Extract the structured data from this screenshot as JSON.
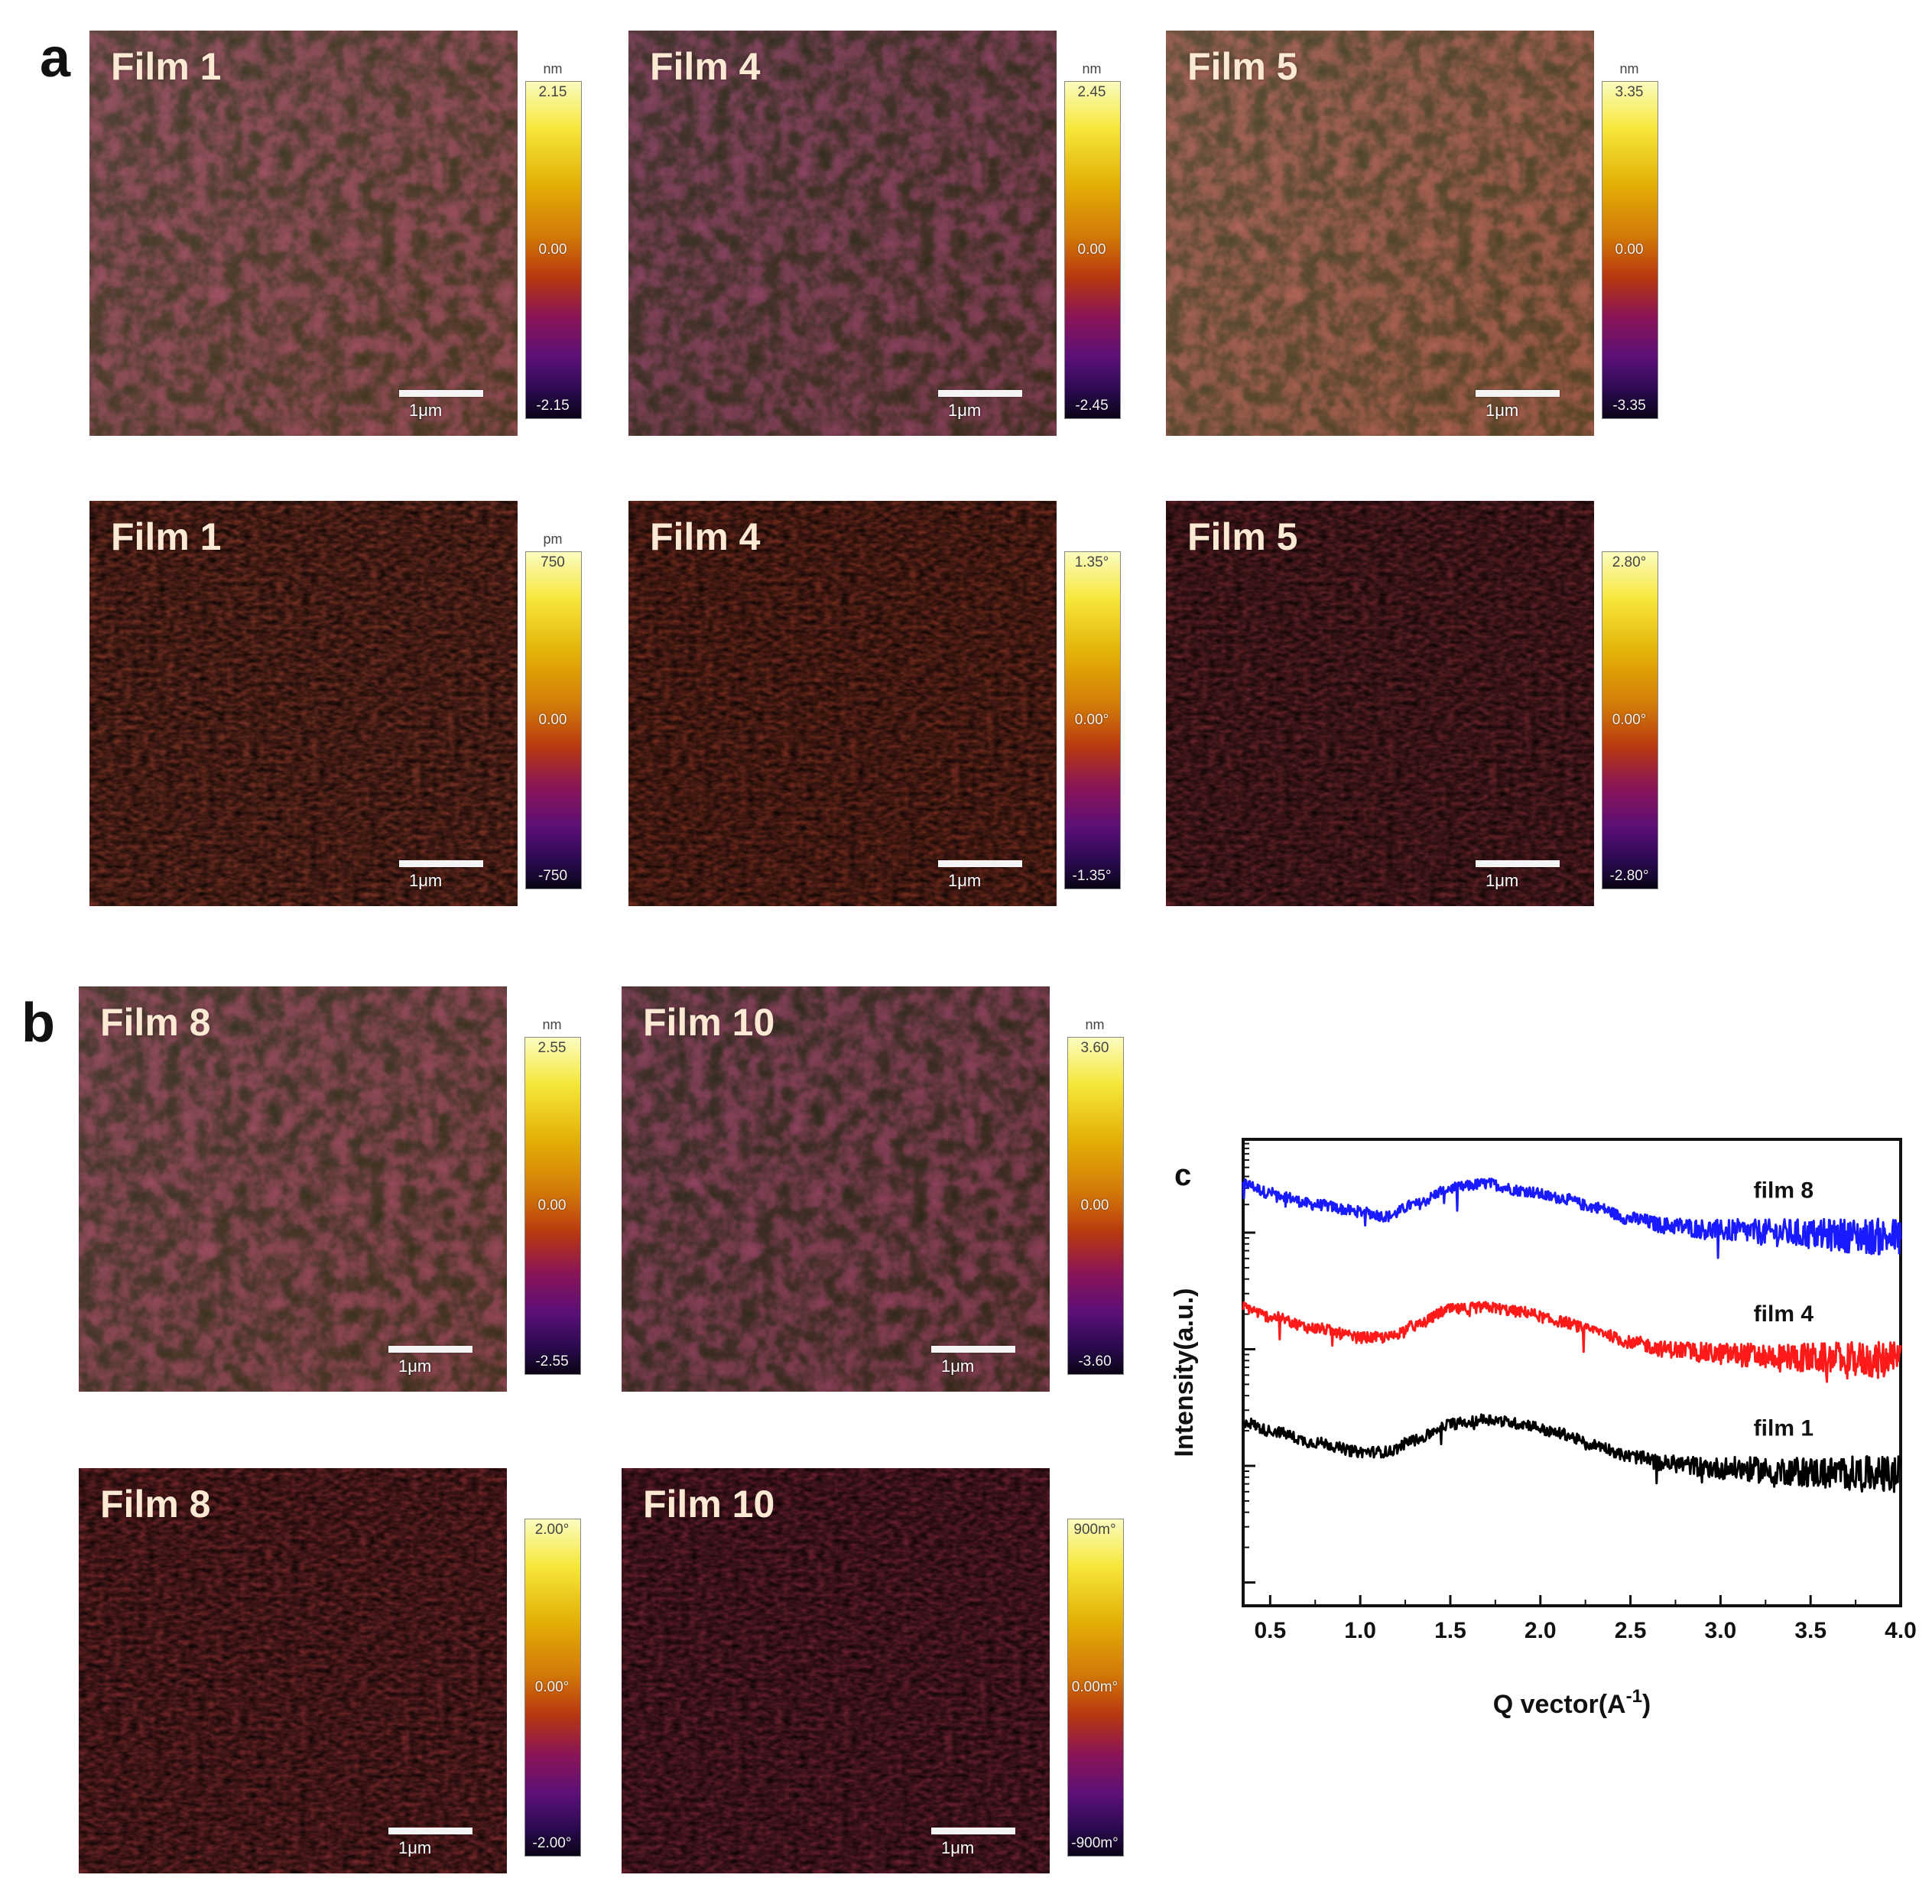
{
  "panels": {
    "a": {
      "letter": "a"
    },
    "b": {
      "letter": "b"
    },
    "c": {
      "letter": "c"
    }
  },
  "afm_images": [
    {
      "id": "a-height-1",
      "film": "Film 1",
      "scale": "1μm",
      "unit": "nm",
      "max": "2.15",
      "mid": "0.00",
      "min": "-2.15",
      "kind": "height"
    },
    {
      "id": "a-height-4",
      "film": "Film 4",
      "scale": "1μm",
      "unit": "nm",
      "max": "2.45",
      "mid": "0.00",
      "min": "-2.45",
      "kind": "height"
    },
    {
      "id": "a-height-5",
      "film": "Film 5",
      "scale": "1μm",
      "unit": "nm",
      "max": "3.35",
      "mid": "0.00",
      "min": "-3.35",
      "kind": "height"
    },
    {
      "id": "a-phase-1",
      "film": "Film 1",
      "scale": "1μm",
      "unit": "pm",
      "max": "750",
      "mid": "0.00",
      "min": "-750",
      "kind": "phase"
    },
    {
      "id": "a-phase-4",
      "film": "Film 4",
      "scale": "1μm",
      "unit": "",
      "max": "1.35°",
      "mid": "0.00°",
      "min": "-1.35°",
      "kind": "phase"
    },
    {
      "id": "a-phase-5",
      "film": "Film 5",
      "scale": "1μm",
      "unit": "",
      "max": "2.80°",
      "mid": "0.00°",
      "min": "-2.80°",
      "kind": "phase"
    },
    {
      "id": "b-height-8",
      "film": "Film 8",
      "scale": "1μm",
      "unit": "nm",
      "max": "2.55",
      "mid": "0.00",
      "min": "-2.55",
      "kind": "height"
    },
    {
      "id": "b-height-10",
      "film": "Film 10",
      "scale": "1μm",
      "unit": "nm",
      "max": "3.60",
      "mid": "0.00",
      "min": "-3.60",
      "kind": "height"
    },
    {
      "id": "b-phase-8",
      "film": "Film 8",
      "scale": "1μm",
      "unit": "",
      "max": "2.00°",
      "mid": "0.00°",
      "min": "-2.00°",
      "kind": "phase"
    },
    {
      "id": "b-phase-10",
      "film": "Film 10",
      "scale": "1μm",
      "unit": "",
      "max": "900m°",
      "mid": "0.00m°",
      "min": "-900m°",
      "kind": "phase"
    }
  ],
  "chart_data": {
    "type": "line",
    "title": "",
    "xlabel": "Q vector(A",
    "xlabel_sup": "-1",
    "xlabel_close": ")",
    "ylabel": "Intensity(a.u.)",
    "xlim": [
      0.35,
      4.0
    ],
    "ylim": [
      0,
      1
    ],
    "xticks": [
      0.5,
      1.0,
      1.5,
      2.0,
      2.5,
      3.0,
      3.5,
      4.0
    ],
    "xtick_labels": [
      "0.5",
      "1.0",
      "1.5",
      "2.0",
      "2.5",
      "3.0",
      "3.5",
      "4.0"
    ],
    "x": [
      0.35,
      0.5,
      0.75,
      1.0,
      1.15,
      1.3,
      1.5,
      1.7,
      1.9,
      2.1,
      2.3,
      2.5,
      2.7,
      3.0,
      3.3,
      3.6,
      4.0
    ],
    "series": [
      {
        "name": "film 8",
        "color": "#1a1aff",
        "values": [
          0.905,
          0.885,
          0.86,
          0.845,
          0.835,
          0.86,
          0.895,
          0.905,
          0.89,
          0.875,
          0.855,
          0.83,
          0.815,
          0.805,
          0.8,
          0.795,
          0.79
        ]
      },
      {
        "name": "film 4",
        "color": "#ff1a1a",
        "values": [
          0.64,
          0.62,
          0.595,
          0.575,
          0.575,
          0.6,
          0.635,
          0.64,
          0.63,
          0.61,
          0.59,
          0.565,
          0.55,
          0.54,
          0.535,
          0.53,
          0.525
        ]
      },
      {
        "name": "film 1",
        "color": "#000000",
        "values": [
          0.395,
          0.375,
          0.35,
          0.33,
          0.33,
          0.355,
          0.39,
          0.4,
          0.39,
          0.37,
          0.345,
          0.32,
          0.305,
          0.295,
          0.29,
          0.285,
          0.28
        ]
      }
    ],
    "legend_labels": [
      "film 8",
      "film 4",
      "film 1"
    ]
  }
}
